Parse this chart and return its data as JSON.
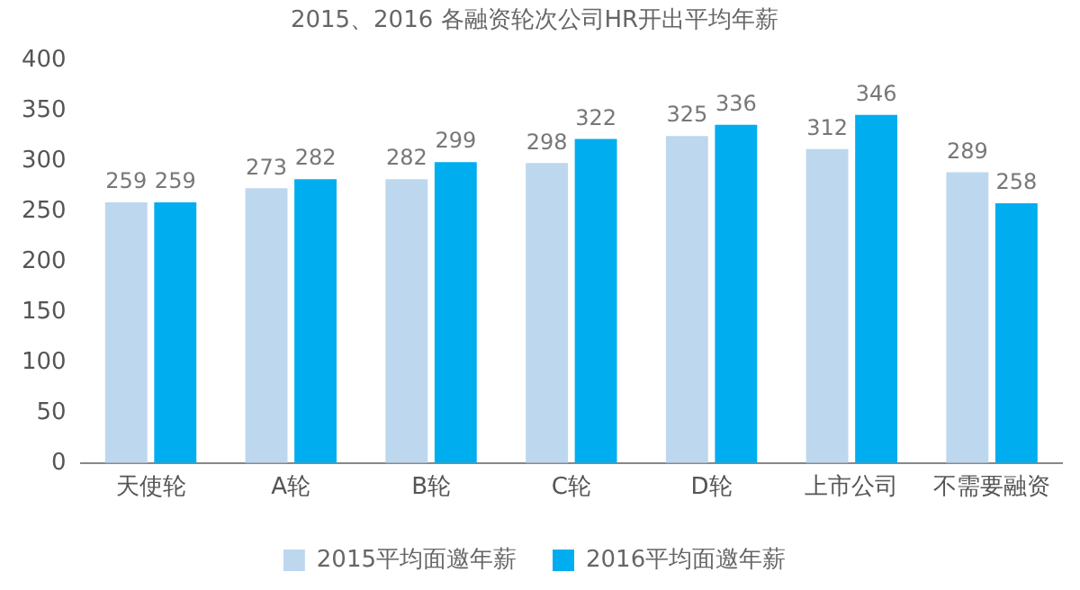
{
  "chart_data": {
    "type": "bar",
    "title": "2015、2016 各融资轮次公司HR开出平均年薪",
    "categories": [
      "天使轮",
      "A轮",
      "B轮",
      "C轮",
      "D轮",
      "上市公司",
      "不需要融资"
    ],
    "series": [
      {
        "name": "2015平均面邀年薪",
        "color": "#bdd7ee",
        "values": [
          259,
          273,
          282,
          298,
          325,
          312,
          289
        ]
      },
      {
        "name": "2016平均面邀年薪",
        "color": "#00aeef",
        "values": [
          259,
          282,
          299,
          322,
          336,
          346,
          258
        ]
      }
    ],
    "ylim": [
      0,
      400
    ],
    "yticks": [
      0,
      50,
      100,
      150,
      200,
      250,
      300,
      350,
      400
    ],
    "grid": false,
    "legend": "bottom",
    "data_labels": true
  }
}
